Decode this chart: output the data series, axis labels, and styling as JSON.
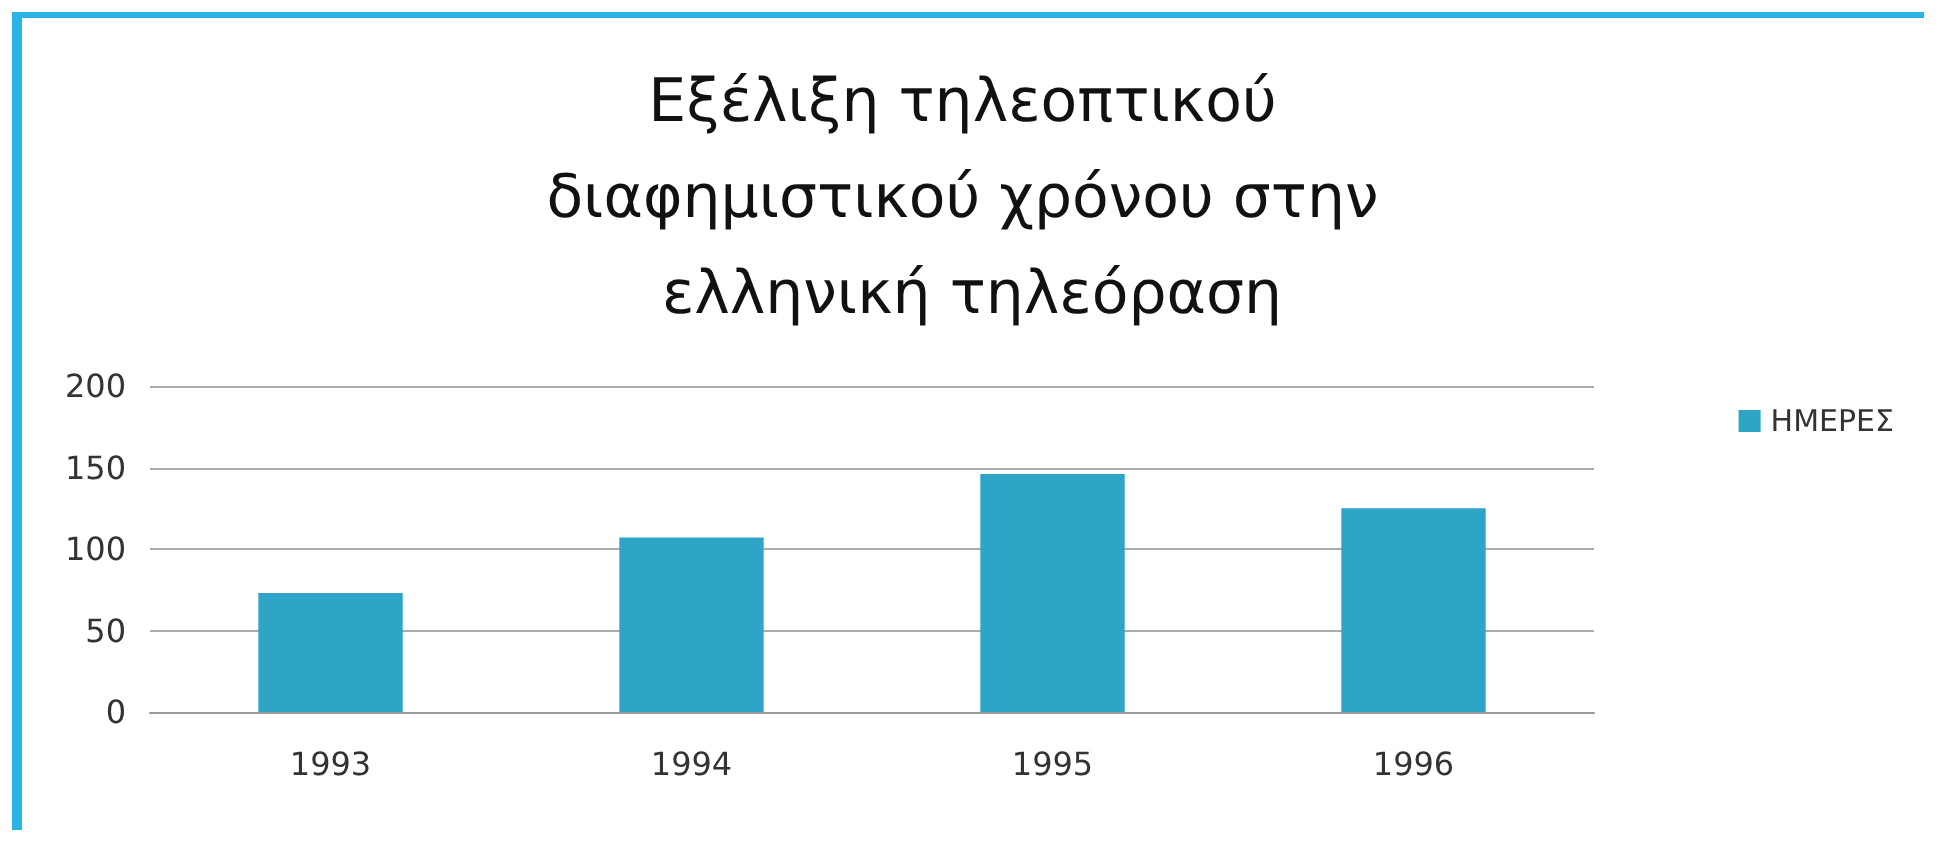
{
  "chart_data": {
    "type": "bar",
    "title": "Εξέλιξη τηλεοπτικού διαφημιστικού χρόνου στην ελληνική τηλεόραση",
    "categories": [
      "1993",
      "1994",
      "1995",
      "1996"
    ],
    "series": [
      {
        "name": "ΗΜΕΡΕΣ",
        "color": "#2ea5c6",
        "values": [
          73,
          107,
          146,
          125
        ]
      }
    ],
    "ylim": [
      0,
      200
    ],
    "yticks": [
      0,
      50,
      100,
      150,
      200
    ],
    "grid": "y",
    "legend": "right"
  }
}
